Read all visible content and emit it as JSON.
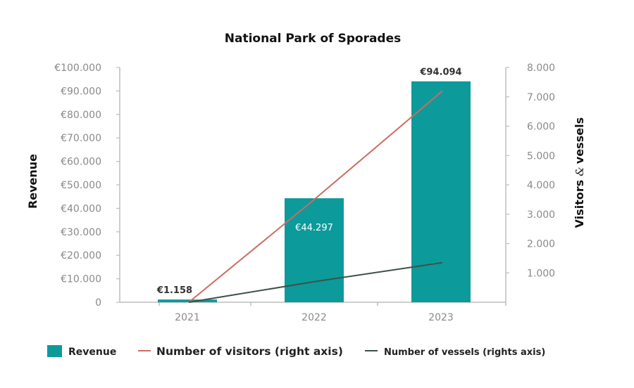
{
  "chart_data": {
    "type": "bar",
    "title": "National Park of Sporades",
    "categories": [
      "2021",
      "2022",
      "2023"
    ],
    "ylabel": "Revenue",
    "y2label_parts": [
      "Visitors",
      "&",
      "vessels"
    ],
    "ylim": [
      0,
      100000
    ],
    "y2lim": [
      0,
      8000
    ],
    "yticks": [
      "0",
      "€10.000",
      "€20.000",
      "€30.000",
      "€40.000",
      "€50.000",
      "€60.000",
      "€70.000",
      "€80.000",
      "€90.000",
      "€100.000"
    ],
    "y2ticks": [
      "1.000",
      "2.000",
      "3.000",
      "4.000",
      "5.000",
      "6.000",
      "7.000",
      "8.000"
    ],
    "series": [
      {
        "name": "Revenue",
        "kind": "bar",
        "axis": "left",
        "values": [
          1158,
          44297,
          94094
        ],
        "labels": [
          "€1.158",
          "€44.297",
          "€94.094"
        ],
        "color": "#0d9a9b"
      },
      {
        "name": "Number of visitors (right axis)",
        "kind": "line",
        "axis": "right",
        "values": [
          0,
          3500,
          7200
        ],
        "color": "#cd6b62"
      },
      {
        "name": "Number of vessels (rights axis)",
        "kind": "line",
        "axis": "right",
        "values": [
          0,
          700,
          1350
        ],
        "color": "#3d5247"
      }
    ],
    "legend_position": "bottom"
  }
}
